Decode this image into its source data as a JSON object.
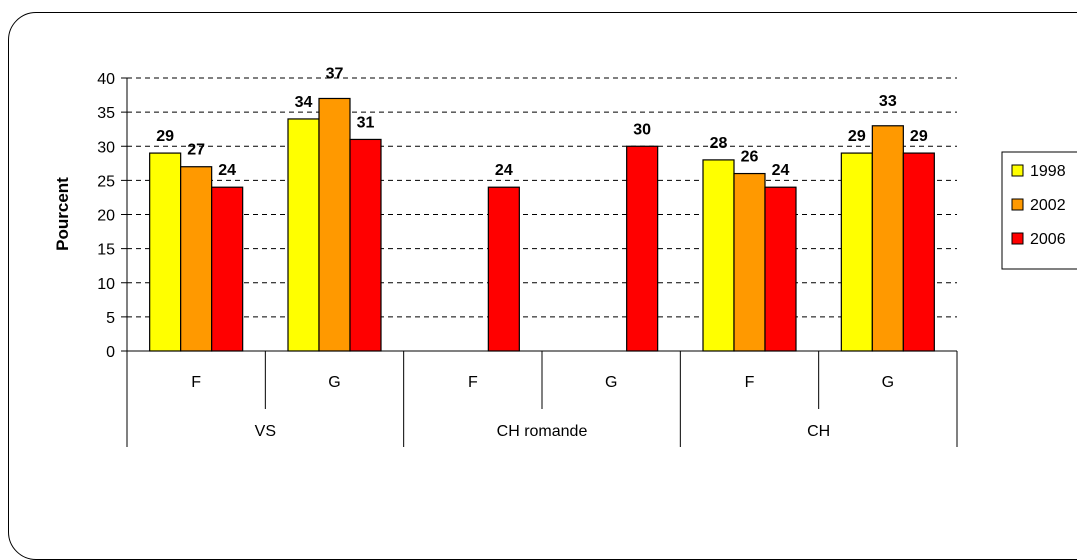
{
  "chart_data": {
    "type": "bar",
    "ylabel": "Pourcent",
    "ylim": [
      0,
      40
    ],
    "yticks": [
      0,
      5,
      10,
      15,
      20,
      25,
      30,
      35,
      40
    ],
    "grid": "horizontal dashed",
    "legend_position": "right",
    "groups": [
      {
        "label": "VS",
        "categories": [
          "F",
          "G"
        ]
      },
      {
        "label": "CH romande",
        "categories": [
          "F",
          "G"
        ]
      },
      {
        "label": "CH",
        "categories": [
          "F",
          "G"
        ]
      }
    ],
    "categories": [
      "F",
      "G",
      "F",
      "G",
      "F",
      "G"
    ],
    "series": [
      {
        "name": "1998",
        "color": "#FFFF00",
        "values": [
          29,
          34,
          null,
          null,
          28,
          29
        ]
      },
      {
        "name": "2002",
        "color": "#FF9900",
        "values": [
          27,
          37,
          null,
          null,
          26,
          33
        ]
      },
      {
        "name": "2006",
        "color": "#FF0000",
        "values": [
          24,
          31,
          24,
          30,
          24,
          29
        ]
      }
    ]
  }
}
